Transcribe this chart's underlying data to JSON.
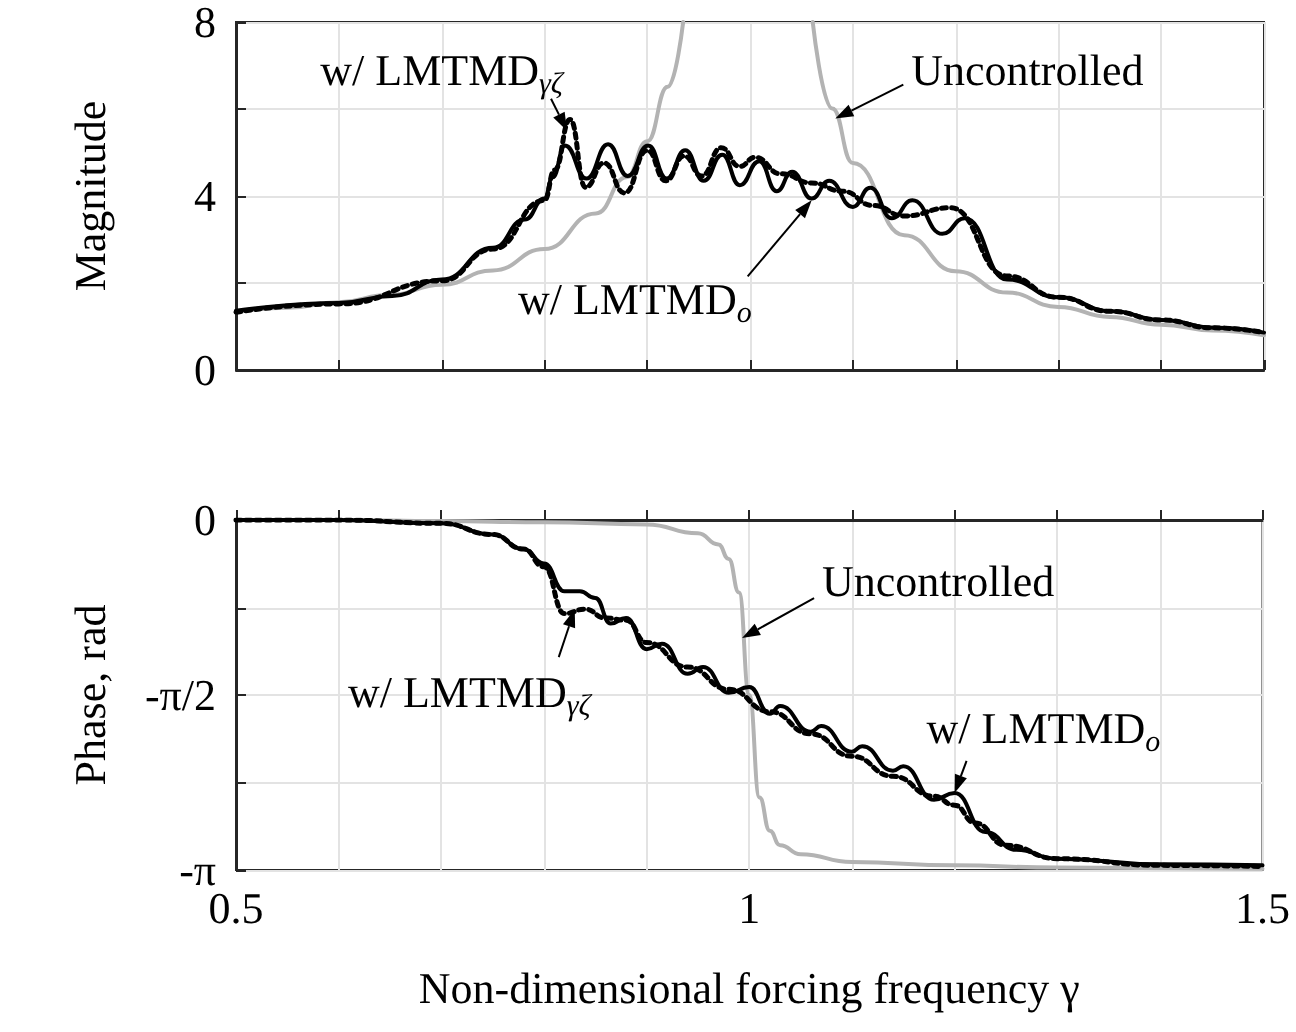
{
  "chart_data": [
    {
      "type": "line",
      "ylabel": "Magnitude",
      "xlim": [
        0.5,
        1.5
      ],
      "ylim": [
        0,
        8
      ],
      "xticks": [
        0.5,
        {
          "value": 0.6,
          "label": null
        },
        {
          "value": 0.7,
          "label": null
        },
        {
          "value": 0.8,
          "label": null
        },
        {
          "value": 0.9,
          "label": null
        },
        1,
        {
          "value": 1.1,
          "label": null
        },
        {
          "value": 1.2,
          "label": null
        },
        {
          "value": 1.3,
          "label": null
        },
        {
          "value": 1.4,
          "label": null
        },
        1.5
      ],
      "yticks": [
        0,
        {
          "value": 2,
          "label": null
        },
        4,
        {
          "value": 6,
          "label": null
        },
        8
      ],
      "tick_labels": "y",
      "grid": true,
      "marker": "none",
      "series": [
        {
          "color": "#b3b3b3",
          "line_style": "solid",
          "x": [
            0.5,
            0.55,
            0.6,
            0.65,
            0.7,
            0.75,
            0.8,
            0.85,
            0.88,
            0.9,
            0.92,
            0.935,
            null,
            1.061,
            1.08,
            1.1,
            1.15,
            1.2,
            1.25,
            1.3,
            1.35,
            1.4,
            1.45,
            1.5
          ],
          "values": [
            1.33,
            1.43,
            1.56,
            1.73,
            1.96,
            2.29,
            2.78,
            3.6,
            4.43,
            5.26,
            6.51,
            8,
            null,
            8,
            6.01,
            4.76,
            3.1,
            2.27,
            1.78,
            1.45,
            1.22,
            1.04,
            0.91,
            0.8
          ]
        },
        {
          "color": "#000000",
          "line_style": "dotted",
          "x": [
            0.5,
            0.6,
            0.7,
            0.75,
            0.8,
            0.81,
            0.825,
            0.84,
            0.858,
            0.878,
            0.9,
            0.918,
            0.936,
            0.953,
            0.972,
            0.99,
            1.005,
            1.03,
            1.06,
            1.09,
            1.12,
            1.15,
            1.195,
            1.25,
            1.3,
            1.35,
            1.4,
            1.45,
            1.5
          ],
          "values": [
            1.33,
            1.52,
            2.05,
            2.78,
            3.9,
            4.6,
            5.76,
            4.2,
            4.76,
            4.07,
            5.05,
            4.35,
            4.92,
            4.46,
            5.11,
            4.68,
            4.89,
            4.51,
            4.3,
            4.11,
            3.78,
            3.54,
            3.73,
            2.16,
            1.67,
            1.35,
            1.15,
            0.97,
            0.86
          ]
        },
        {
          "color": "#000000",
          "line_style": "solid",
          "x": [
            0.5,
            0.6,
            0.652,
            0.7,
            0.75,
            0.781,
            0.8,
            0.808,
            0.82,
            0.841,
            0.862,
            0.881,
            0.901,
            0.919,
            0.937,
            0.955,
            0.973,
            0.99,
            1.009,
            1.026,
            1.041,
            1.06,
            1.077,
            1.1,
            1.117,
            1.138,
            1.158,
            1.187,
            1.209,
            1.25,
            1.3,
            1.352,
            1.4,
            1.454,
            1.5
          ],
          "values": [
            1.36,
            1.54,
            1.7,
            2.08,
            2.81,
            3.46,
            3.94,
            4.43,
            5.16,
            4.4,
            5.19,
            4.46,
            5.16,
            4.4,
            5.05,
            4.35,
            4.95,
            4.25,
            4.8,
            4.11,
            4.56,
            3.94,
            4.35,
            3.75,
            4.19,
            3.49,
            3.9,
            3.13,
            3.49,
            2.08,
            1.67,
            1.35,
            1.15,
            0.97,
            0.86
          ]
        }
      ],
      "annotations": [
        {
          "text": "w/ LMTMD$_{γζ}$",
          "x": 0.822,
          "y": 5.5
        },
        {
          "text": "Uncontrolled",
          "x": 1.083,
          "y": 5.78
        },
        {
          "text": "w/ LMTMD$_{o}$",
          "x": 1.06,
          "y": 3.9
        }
      ]
    },
    {
      "type": "line",
      "xlabel": "Non-dimensional forcing frequency γ",
      "ylabel": "Phase, rad",
      "xlim": [
        0.5,
        1.5
      ],
      "ylim": [
        -3.1416,
        0
      ],
      "xticks": [
        0.5,
        {
          "value": 0.6,
          "label": null
        },
        {
          "value": 0.7,
          "label": null
        },
        {
          "value": 0.8,
          "label": null
        },
        {
          "value": 0.9,
          "label": null
        },
        1,
        {
          "value": 1.1,
          "label": null
        },
        {
          "value": 1.2,
          "label": null
        },
        {
          "value": 1.3,
          "label": null
        },
        {
          "value": 1.4,
          "label": null
        },
        1.5
      ],
      "yticks": [
        {
          "value": -3.1416,
          "label": "-π"
        },
        {
          "value": -2.3562,
          "label": null
        },
        {
          "value": -1.5708,
          "label": "-π/2"
        },
        {
          "value": -0.7854,
          "label": null
        },
        0
      ],
      "grid": true,
      "marker": "none",
      "series": [
        {
          "color": "#b3b3b3",
          "line_style": "solid",
          "x": [
            0.5,
            0.6,
            0.7,
            0.8,
            0.9,
            0.95,
            0.97,
            0.98,
            0.99,
            1.0,
            1.01,
            1.02,
            1.03,
            1.05,
            1.1,
            1.2,
            1.3,
            1.5
          ],
          "values": [
            0,
            0,
            -0.01,
            -0.02,
            -0.04,
            -0.12,
            -0.22,
            -0.35,
            -0.65,
            -1.5708,
            -2.49,
            -2.79,
            -2.92,
            -3.0,
            -3.07,
            -3.1,
            -3.12,
            -3.13
          ]
        },
        {
          "color": "#000000",
          "line_style": "dotted",
          "x": [
            0.5,
            0.6,
            0.7,
            0.75,
            0.78,
            0.8,
            0.82,
            0.84,
            0.86,
            0.88,
            0.9,
            0.94,
            0.98,
            1.02,
            1.06,
            1.1,
            1.14,
            1.18,
            1.2,
            1.22,
            1.25,
            1.3,
            1.4,
            1.5
          ],
          "values": [
            0,
            0,
            -0.03,
            -0.13,
            -0.26,
            -0.42,
            -0.84,
            -0.8,
            -0.88,
            -0.9,
            -1.1,
            -1.32,
            -1.52,
            -1.72,
            -1.92,
            -2.12,
            -2.3,
            -2.48,
            -2.56,
            -2.72,
            -2.92,
            -3.04,
            -3.1,
            -3.11
          ]
        },
        {
          "color": "#000000",
          "line_style": "solid",
          "x": [
            0.5,
            0.6,
            0.7,
            0.75,
            0.78,
            0.8,
            0.82,
            0.835,
            0.85,
            0.865,
            0.88,
            0.9,
            0.915,
            0.94,
            0.955,
            0.98,
            1.0,
            1.02,
            1.03,
            1.06,
            1.07,
            1.1,
            1.11,
            1.14,
            1.15,
            1.18,
            1.2,
            1.23,
            1.26,
            1.3,
            1.4,
            1.5
          ],
          "values": [
            0,
            0,
            -0.03,
            -0.13,
            -0.26,
            -0.39,
            -0.64,
            -0.64,
            -0.7,
            -0.93,
            -0.88,
            -1.16,
            -1.11,
            -1.38,
            -1.32,
            -1.55,
            -1.5,
            -1.74,
            -1.67,
            -1.9,
            -1.85,
            -2.08,
            -2.03,
            -2.25,
            -2.21,
            -2.51,
            -2.45,
            -2.8,
            -2.96,
            -3.04,
            -3.09,
            -3.1
          ]
        }
      ],
      "annotations": [
        {
          "text": "w/ LMTMD$_{γζ}$",
          "x": 0.83,
          "y": -0.8
        },
        {
          "text": "Uncontrolled",
          "x": 0.993,
          "y": -1.06
        },
        {
          "text": "w/ LMTMD$_{o}$",
          "x": 1.2,
          "y": -2.45
        }
      ]
    }
  ]
}
